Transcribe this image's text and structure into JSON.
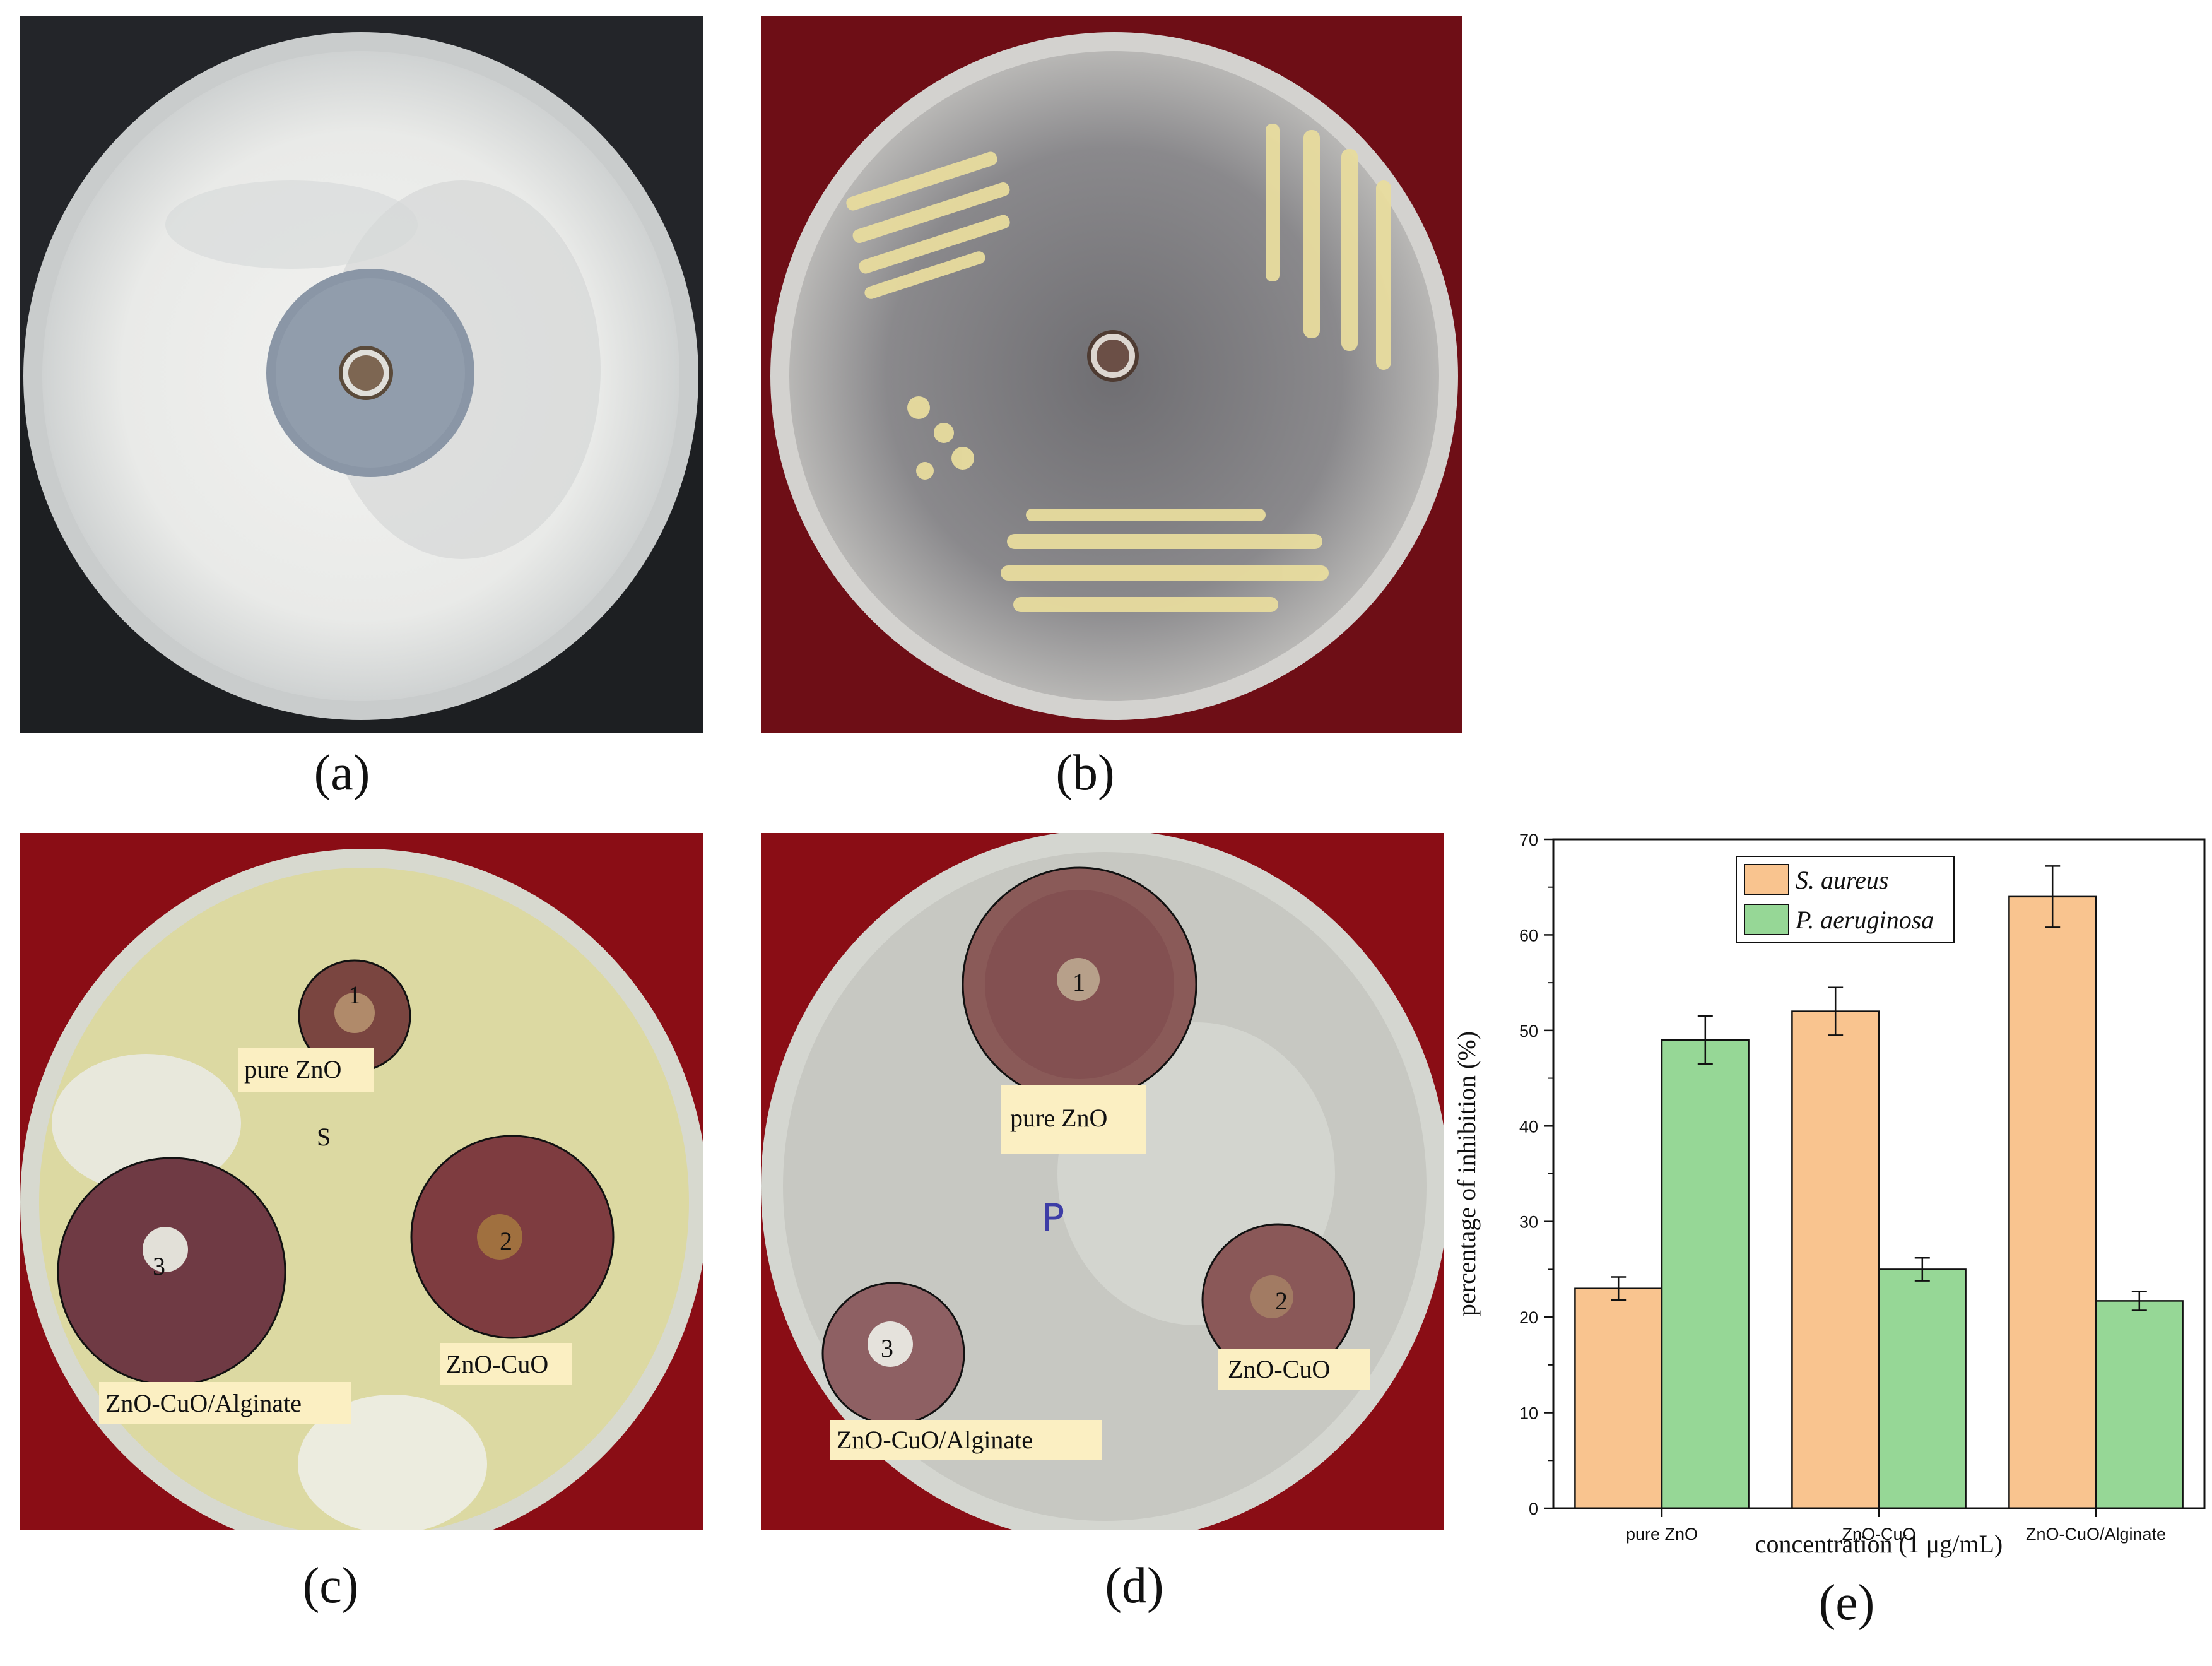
{
  "captions": {
    "a": "(a)",
    "b": "(b)",
    "c": "(c)",
    "d": "(d)",
    "e": "(e)"
  },
  "plate_c": {
    "labels": [
      "pure ZnO",
      "ZnO-CuO",
      "ZnO-CuO/Alginate"
    ],
    "well_marks": [
      "1",
      "2",
      "3"
    ],
    "plate_mark": "S"
  },
  "plate_d": {
    "labels": [
      "pure ZnO",
      "ZnO-CuO",
      "ZnO-CuO/Alginate"
    ],
    "well_marks": [
      "1",
      "2",
      "3"
    ],
    "plate_mark": "P"
  },
  "colors": {
    "s_aureus": "#f9c48f",
    "p_aeruginosa": "#96d796",
    "plate_a_background": "#1d1f22",
    "plate_b_background": "#7a0f18",
    "plate_cd_background": "#8a0d15"
  },
  "chart_data": {
    "type": "bar",
    "categories": [
      "pure ZnO",
      "ZnO-CuO",
      "ZnO-CuO/Alginate"
    ],
    "series": [
      {
        "name": "S. aureus",
        "values": [
          23,
          52,
          64
        ],
        "errors": [
          1.2,
          2.5,
          3.2
        ]
      },
      {
        "name": "P. aeruginosa",
        "values": [
          49,
          25,
          21.7
        ],
        "errors": [
          2.5,
          1.2,
          1.0
        ]
      }
    ],
    "xlabel": "concentration (1 μg/mL)",
    "ylabel": "percentage of inhibition (%)",
    "ylim": [
      0,
      70
    ],
    "yticks": [
      0,
      10,
      20,
      30,
      40,
      50,
      60,
      70
    ],
    "legend_position": "top-right",
    "grid": false
  }
}
